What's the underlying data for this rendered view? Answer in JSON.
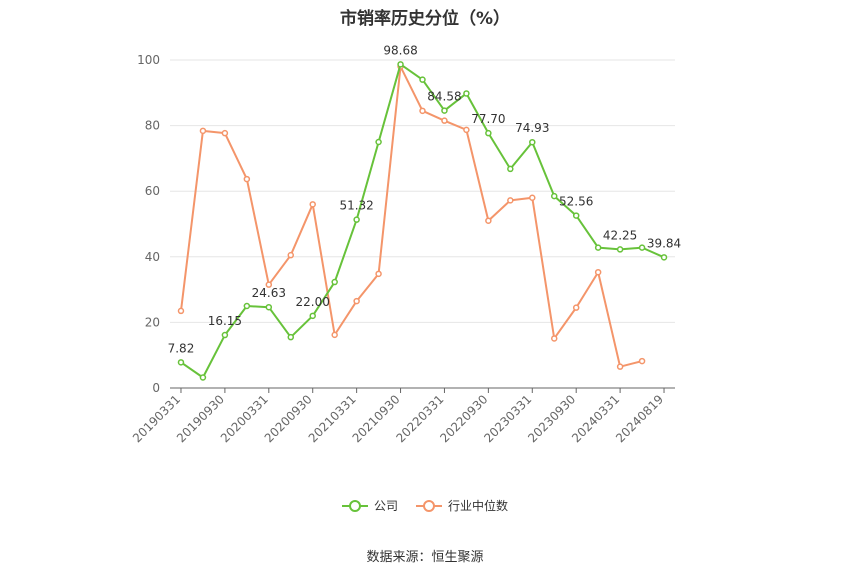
{
  "chart_data": {
    "type": "line",
    "title": "市销率历史分位（%）",
    "ylim": [
      0,
      100
    ],
    "yticks": [
      0,
      20,
      40,
      60,
      80,
      100
    ],
    "grid": true,
    "legend_placement": "bottom",
    "x_tick_labels": [
      "20190331",
      "20190930",
      "20200331",
      "20200930",
      "20210331",
      "20210930",
      "20220331",
      "20220930",
      "20230331",
      "20230930",
      "20240331",
      "20240819"
    ],
    "x": [
      "20190331",
      "20190630",
      "20190930",
      "20191231",
      "20200331",
      "20200630",
      "20200930",
      "20201231",
      "20210331",
      "20210630",
      "20210930",
      "20211231",
      "20220331",
      "20220630",
      "20220930",
      "20221231",
      "20230331",
      "20230630",
      "20230930",
      "20231231",
      "20240331",
      "20240630",
      "20240819"
    ],
    "series": [
      {
        "name": "公司",
        "color": "#67c23a",
        "values": [
          7.82,
          3.2,
          16.15,
          25.0,
          24.63,
          15.5,
          22.0,
          32.3,
          51.32,
          75.0,
          98.68,
          94.0,
          84.58,
          89.8,
          77.7,
          66.8,
          74.93,
          58.5,
          52.56,
          42.8,
          42.25,
          42.8,
          39.84
        ],
        "data_labels": [
          {
            "index": 0,
            "text": "7.82"
          },
          {
            "index": 2,
            "text": "16.15"
          },
          {
            "index": 4,
            "text": "24.63"
          },
          {
            "index": 6,
            "text": "22.00"
          },
          {
            "index": 8,
            "text": "51.32"
          },
          {
            "index": 10,
            "text": "98.68"
          },
          {
            "index": 12,
            "text": "84.58"
          },
          {
            "index": 14,
            "text": "77.70"
          },
          {
            "index": 16,
            "text": "74.93"
          },
          {
            "index": 18,
            "text": "52.56"
          },
          {
            "index": 20,
            "text": "42.25"
          },
          {
            "index": 22,
            "text": "39.84"
          }
        ]
      },
      {
        "name": "行业中位数",
        "color": "#f4956a",
        "values": [
          23.5,
          78.4,
          77.7,
          63.7,
          31.5,
          40.5,
          56.0,
          16.2,
          26.5,
          34.8,
          98.0,
          84.5,
          81.5,
          78.7,
          51.0,
          57.2,
          58.0,
          15.1,
          24.5,
          35.3,
          6.5,
          8.2,
          null
        ]
      }
    ]
  },
  "source_text": "数据来源：恒生聚源"
}
